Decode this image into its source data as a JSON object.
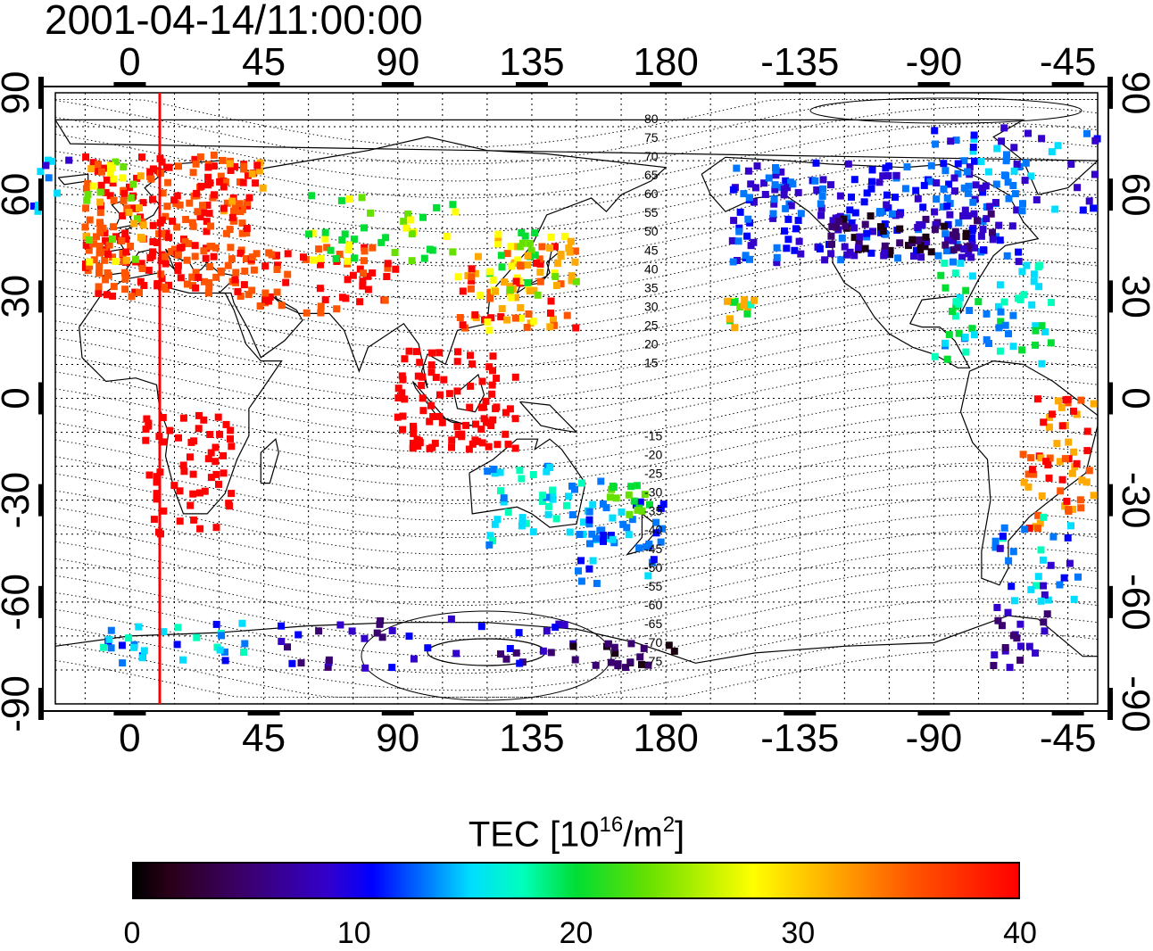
{
  "title": "2001-04-14/11:00:00",
  "top_longitude_ticks": [
    "0",
    "45",
    "90",
    "135",
    "180",
    "-135",
    "-90",
    "-45"
  ],
  "bottom_longitude_ticks": [
    "0",
    "45",
    "90",
    "135",
    "180",
    "-135",
    "-90",
    "-45"
  ],
  "left_latitude_ticks": [
    "90",
    "60",
    "30",
    "0",
    "-30",
    "-60",
    "-90"
  ],
  "right_latitude_ticks": [
    "90",
    "60",
    "30",
    "0",
    "-30",
    "-60",
    "-90"
  ],
  "contour_labels_north": [
    "80",
    "75",
    "70",
    "65",
    "60",
    "55",
    "50",
    "45",
    "40",
    "35",
    "30",
    "25",
    "20",
    "15"
  ],
  "contour_labels_south": [
    "-15",
    "-20",
    "-25",
    "-30",
    "-35",
    "-40",
    "-45",
    "-50",
    "-55",
    "-60",
    "-65",
    "-70",
    "-75"
  ],
  "colorbar": {
    "title_main": "TEC  [10",
    "title_sup1": "16",
    "title_mid": "/m",
    "title_sup2": "2",
    "title_end": "]",
    "ticks": [
      "0",
      "10",
      "20",
      "30",
      "40"
    ],
    "range": [
      0,
      40
    ]
  },
  "colors": {
    "high": "#ff0000",
    "mid": "#ffff00",
    "low": "#0000ff",
    "marker": "#ff0000"
  },
  "terminator_longitude": 15
}
